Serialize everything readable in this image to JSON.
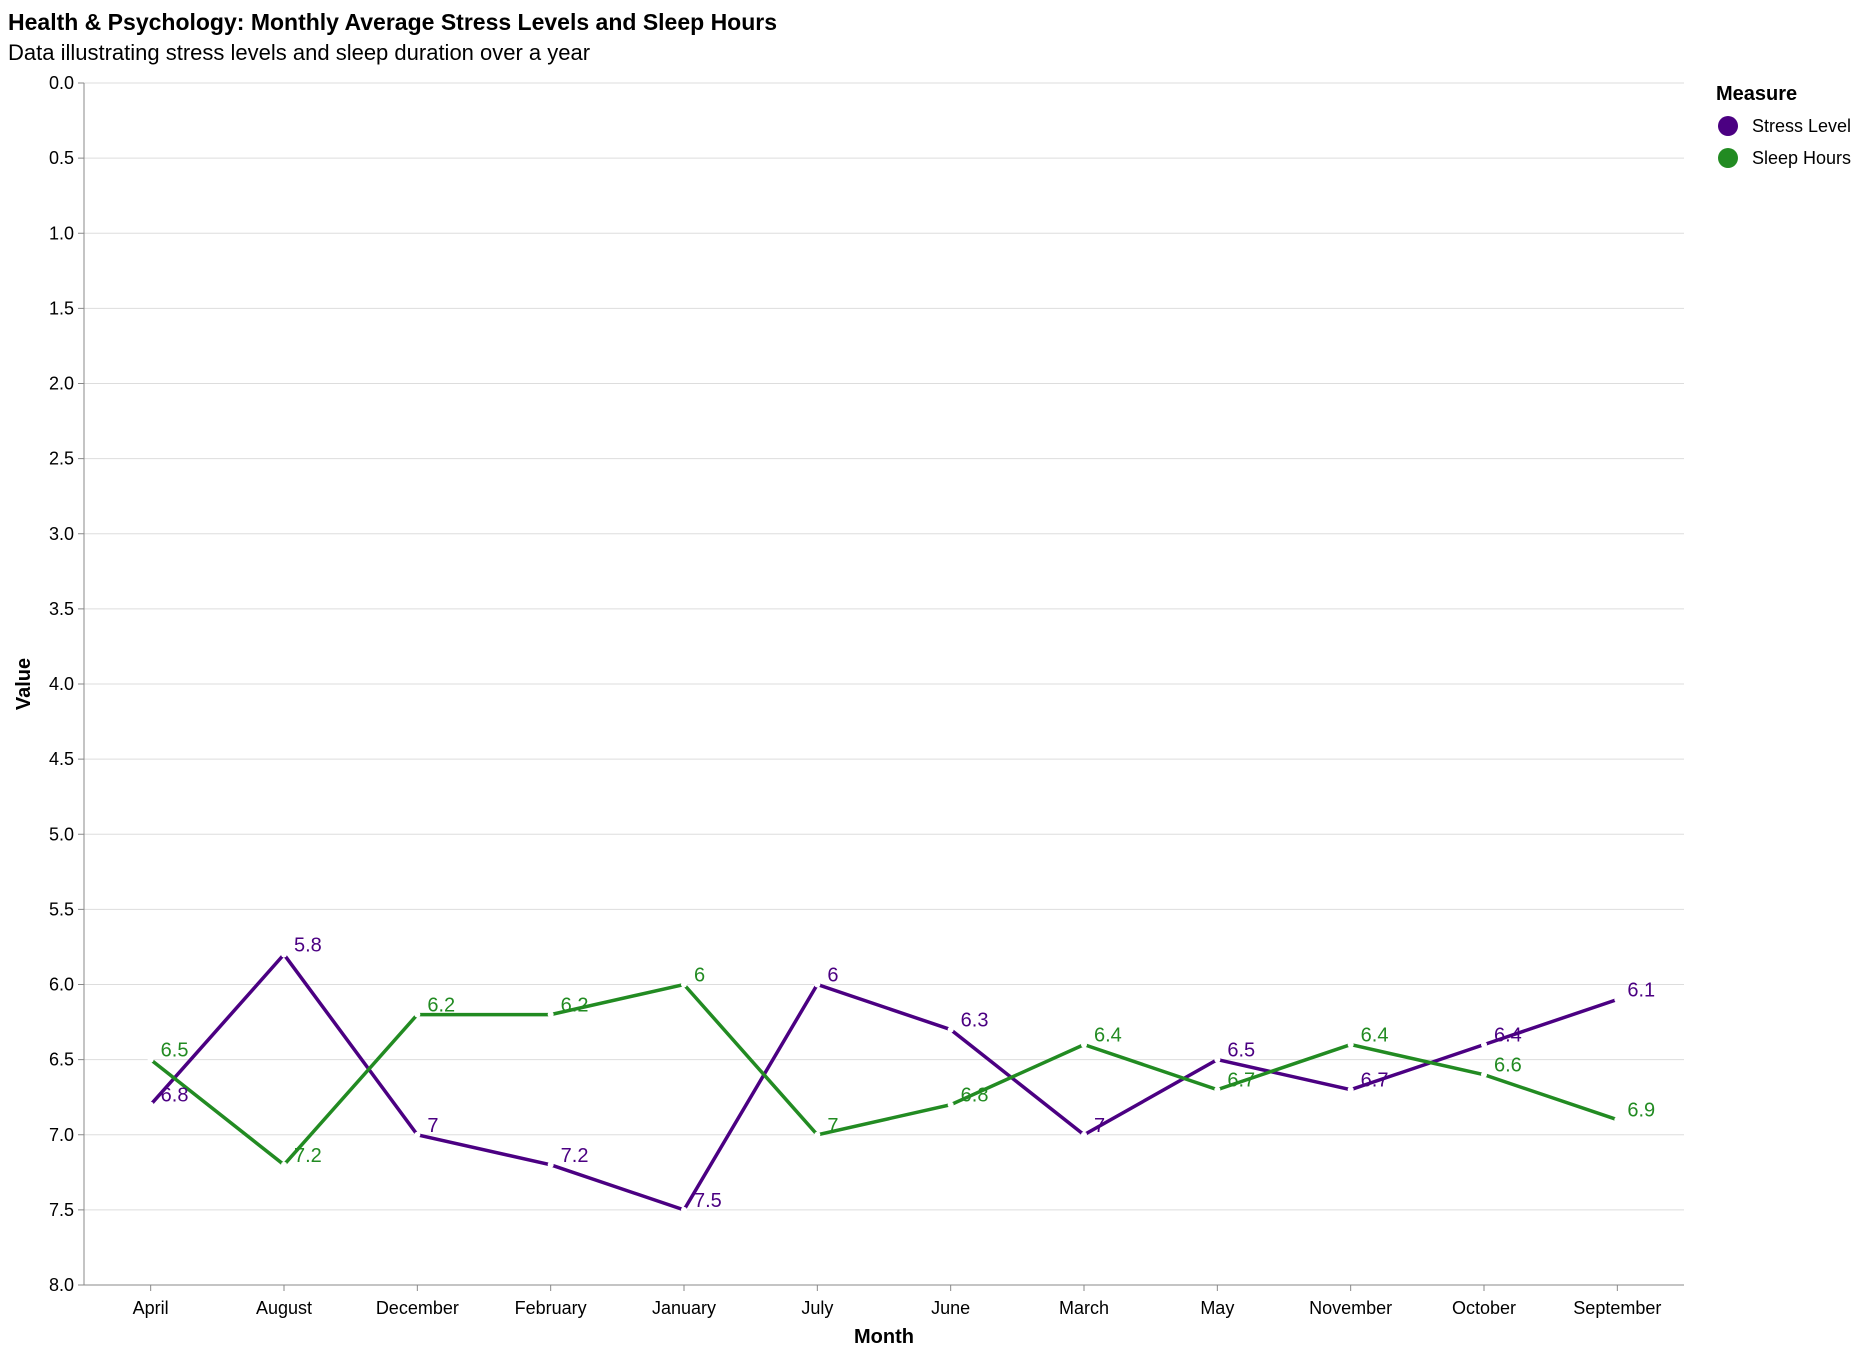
{
  "chart_data": {
    "type": "line",
    "title": "Health & Psychology: Monthly Average Stress Levels and Sleep Hours",
    "subtitle": "Data illustrating stress levels and sleep duration over a year",
    "xlabel": "Month",
    "ylabel": "Value",
    "categories": [
      "April",
      "August",
      "December",
      "February",
      "January",
      "July",
      "June",
      "March",
      "May",
      "November",
      "October",
      "September"
    ],
    "y_ticks": [
      "0.0",
      "0.5",
      "1.0",
      "1.5",
      "2.0",
      "2.5",
      "3.0",
      "3.5",
      "4.0",
      "4.5",
      "5.0",
      "5.5",
      "6.0",
      "6.5",
      "7.0",
      "7.5",
      "8.0"
    ],
    "ylim": [
      0,
      8
    ],
    "y_reversed": true,
    "grid": true,
    "legend": {
      "title": "Measure",
      "placement": "top-right"
    },
    "series": [
      {
        "name": "Stress Level",
        "color": "#4b0082",
        "values": [
          6.8,
          5.8,
          7,
          7.2,
          7.5,
          6,
          6.3,
          7,
          6.5,
          6.7,
          6.4,
          6.1
        ],
        "labels": [
          "6.8",
          "5.8",
          "7",
          "7.2",
          "7.5",
          "6",
          "6.3",
          "7",
          "6.5",
          "6.7",
          "6.4",
          "6.1"
        ]
      },
      {
        "name": "Sleep Hours",
        "color": "#228b22",
        "values": [
          6.5,
          7.2,
          6.2,
          6.2,
          6,
          7,
          6.8,
          6.4,
          6.7,
          6.4,
          6.6,
          6.9
        ],
        "labels": [
          "6.5",
          "7.2",
          "6.2",
          "6.2",
          "6",
          "7",
          "6.8",
          "6.4",
          "6.7",
          "6.4",
          "6.6",
          "6.9"
        ]
      }
    ]
  }
}
